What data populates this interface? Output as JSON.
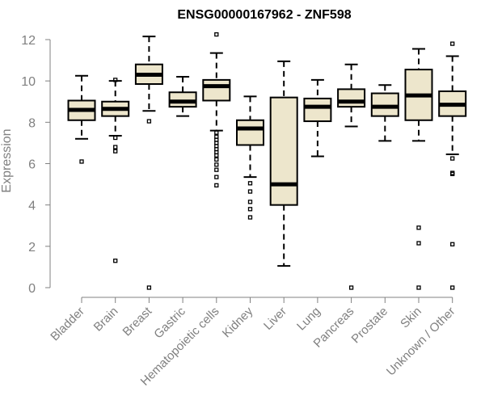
{
  "chart_data": {
    "type": "boxplot",
    "title": "ENSG00000167962 - ZNF598",
    "xlabel": "",
    "ylabel": "Expression",
    "ylim": [
      0,
      12
    ],
    "yticks": [
      0,
      2,
      4,
      6,
      8,
      10,
      12
    ],
    "box_color": "#ede6cc",
    "categories": [
      "Bladder",
      "Brain",
      "Breast",
      "Gastric",
      "Hematopoietic cells",
      "Kidney",
      "Liver",
      "Lung",
      "Pancreas",
      "Prostate",
      "Skin",
      "Unknown / Other"
    ],
    "boxes": [
      {
        "min": 7.2,
        "q1": 8.1,
        "median": 8.6,
        "q3": 9.05,
        "max": 10.25,
        "outliers": [
          6.1
        ]
      },
      {
        "min": 7.35,
        "q1": 8.3,
        "median": 8.65,
        "q3": 9.0,
        "max": 10.0,
        "outliers": [
          10.05,
          7.25,
          6.8,
          6.6,
          1.3
        ]
      },
      {
        "min": 8.55,
        "q1": 9.85,
        "median": 10.3,
        "q3": 10.8,
        "max": 12.15,
        "outliers": [
          8.05,
          0.0
        ]
      },
      {
        "min": 8.3,
        "q1": 8.75,
        "median": 9.0,
        "q3": 9.45,
        "max": 10.2,
        "outliers": []
      },
      {
        "min": 7.6,
        "q1": 9.05,
        "median": 9.75,
        "q3": 10.05,
        "max": 11.35,
        "outliers": [
          12.25,
          7.5,
          7.3,
          7.15,
          7.0,
          6.85,
          6.7,
          6.55,
          6.4,
          6.2,
          5.95,
          5.7,
          5.35,
          4.95
        ]
      },
      {
        "min": 5.35,
        "q1": 6.9,
        "median": 7.7,
        "q3": 8.1,
        "max": 9.25,
        "outliers": [
          5.05,
          4.65,
          4.15,
          3.8,
          3.4
        ]
      },
      {
        "min": 1.05,
        "q1": 4.0,
        "median": 5.0,
        "q3": 9.2,
        "max": 10.95,
        "outliers": []
      },
      {
        "min": 6.35,
        "q1": 8.05,
        "median": 8.75,
        "q3": 9.15,
        "max": 10.05,
        "outliers": []
      },
      {
        "min": 7.8,
        "q1": 8.75,
        "median": 9.0,
        "q3": 9.6,
        "max": 10.8,
        "outliers": [
          0.0
        ]
      },
      {
        "min": 7.1,
        "q1": 8.3,
        "median": 8.75,
        "q3": 9.4,
        "max": 9.8,
        "outliers": []
      },
      {
        "min": 7.1,
        "q1": 8.1,
        "median": 9.3,
        "q3": 10.55,
        "max": 11.55,
        "outliers": [
          2.9,
          2.15,
          0.0
        ]
      },
      {
        "min": 6.45,
        "q1": 8.3,
        "median": 8.85,
        "q3": 9.5,
        "max": 11.2,
        "outliers": [
          11.8,
          6.25,
          5.55,
          5.5,
          2.1,
          0.0
        ]
      }
    ]
  }
}
